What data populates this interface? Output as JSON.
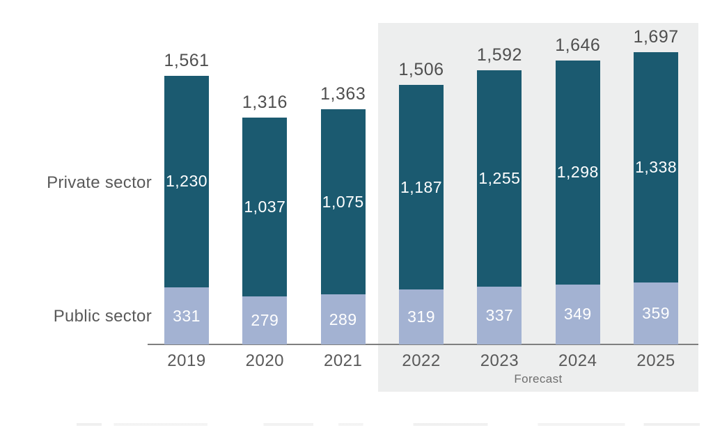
{
  "chart_data": {
    "type": "bar",
    "stacked": true,
    "title": "",
    "xlabel": "",
    "ylabel": "",
    "grid": false,
    "ylim": [
      0,
      1700
    ],
    "categories": [
      "2019",
      "2020",
      "2021",
      "2022",
      "2023",
      "2024",
      "2025"
    ],
    "series": [
      {
        "name": "Private sector",
        "values": [
          1230,
          1037,
          1075,
          1187,
          1255,
          1298,
          1338
        ],
        "value_labels": [
          "1,230",
          "1,037",
          "1,075",
          "1,187",
          "1,255",
          "1,298",
          "1,338"
        ]
      },
      {
        "name": "Public sector",
        "values": [
          331,
          279,
          289,
          319,
          337,
          349,
          359
        ],
        "value_labels": [
          "331",
          "279",
          "289",
          "319",
          "337",
          "349",
          "359"
        ]
      }
    ],
    "totals": [
      1561,
      1316,
      1363,
      1506,
      1592,
      1646,
      1697
    ],
    "total_labels": [
      "1,561",
      "1,316",
      "1,363",
      "1,506",
      "1,592",
      "1,646",
      "1,697"
    ],
    "left_labels": {
      "private": "Private sector",
      "public": "Public sector"
    },
    "forecast": {
      "label": "Forecast",
      "categories": [
        "2022",
        "2023",
        "2024",
        "2025"
      ]
    },
    "legend_position": "left-inline"
  },
  "colors": {
    "private_bar": "#1B5A70",
    "public_bar": "#A3B2D2",
    "forecast_background": "#EDEEEE",
    "axis_line": "#7F7F7F",
    "label_text": "#595959",
    "total_text": "#4F4F4F",
    "bar_value_text": "#FFFFFF"
  }
}
